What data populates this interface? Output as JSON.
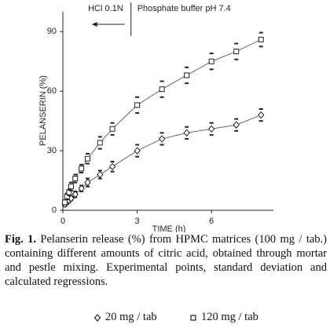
{
  "chart_data": {
    "type": "line",
    "x_label": "TIME (h)",
    "y_label": "PELANSERIN (%)",
    "annotations": [
      {
        "text": "HCl 0.1N",
        "side": "left"
      },
      {
        "text": "Phosphate buffer pH 7.4",
        "side": "right"
      }
    ],
    "divider_x": 2.75,
    "x": [
      0.083,
      0.167,
      0.25,
      0.333,
      0.5,
      0.75,
      1,
      1.5,
      2,
      3,
      4,
      5,
      6,
      7,
      8
    ],
    "series": [
      {
        "name": "20 mg / tab",
        "marker": "diamond",
        "color": "#222222",
        "values": [
          3,
          4,
          5,
          6,
          8,
          11,
          14,
          18,
          22,
          30,
          36,
          39,
          41,
          43,
          48
        ],
        "errors": [
          1,
          1,
          1,
          1,
          1.5,
          1.5,
          2,
          2,
          2.5,
          3,
          3,
          3,
          3,
          3,
          3
        ]
      },
      {
        "name": "120 mg / tab",
        "marker": "square",
        "color": "#222222",
        "values": [
          4,
          7,
          9,
          12,
          16,
          21,
          26,
          34,
          41,
          53,
          61,
          68,
          75,
          80,
          86
        ],
        "errors": [
          1,
          1.5,
          1.5,
          2,
          2,
          2,
          2.5,
          3,
          3,
          4,
          4,
          4,
          4,
          4,
          3.5
        ]
      }
    ],
    "xlim": [
      0,
      8.5
    ],
    "xticks": [
      0,
      3,
      6
    ],
    "ylim": [
      0,
      100
    ],
    "yticks": [
      0,
      30,
      60,
      90
    ],
    "caption_label": "Fig. 1.",
    "caption": "Pelanserin release (%) from HPMC matrices (100 mg / tab.) containing different amounts of citric acid, obtained through mortar and pestle mixing. Experimental points, standard deviation and calculated regressions."
  }
}
